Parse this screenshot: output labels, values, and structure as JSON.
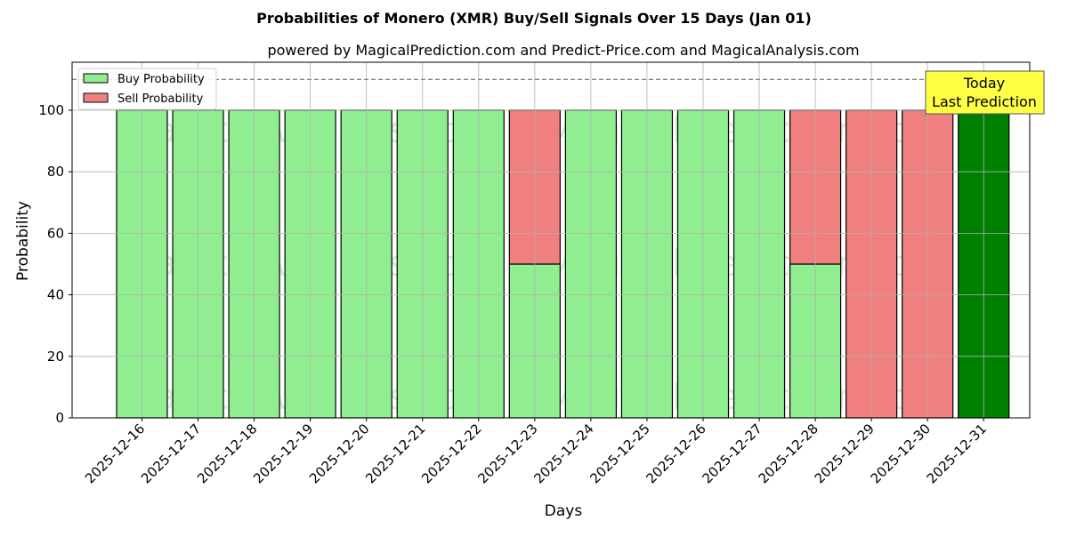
{
  "title": "Probabilities of Monero (XMR) Buy/Sell Signals Over 15 Days (Jan 01)",
  "subtitle": "powered by MagicalPrediction.com and Predict-Price.com and MagicalAnalysis.com",
  "watermarks": [
    "MagicalAnalysis.com",
    "MagicalPrediction.com"
  ],
  "annotation": {
    "line1": "Today",
    "line2": "Last Prediction",
    "bg": "#ffff44"
  },
  "colors": {
    "buy": "#90ee90",
    "sell": "#f08080",
    "today": "#008000"
  },
  "chart_data": {
    "type": "bar",
    "stacked": true,
    "title": "Probabilities of Monero (XMR) Buy/Sell Signals Over 15 Days (Jan 01)",
    "subtitle": "powered by MagicalPrediction.com and Predict-Price.com and MagicalAnalysis.com",
    "xlabel": "Days",
    "ylabel": "Probability",
    "ylim": [
      0,
      115.6
    ],
    "yticks": [
      0,
      20,
      40,
      60,
      80,
      100
    ],
    "grid": true,
    "legend_position": "upper left",
    "reference_line": {
      "y": 110,
      "style": "dashed",
      "color": "#808080"
    },
    "categories": [
      "2025-12-16",
      "2025-12-17",
      "2025-12-18",
      "2025-12-19",
      "2025-12-20",
      "2025-12-21",
      "2025-12-22",
      "2025-12-23",
      "2025-12-24",
      "2025-12-25",
      "2025-12-26",
      "2025-12-27",
      "2025-12-28",
      "2025-12-29",
      "2025-12-30",
      "2025-12-31"
    ],
    "series": [
      {
        "name": "Buy Probability",
        "values": [
          100,
          100,
          100,
          100,
          100,
          100,
          100,
          50,
          100,
          100,
          100,
          100,
          50,
          0,
          0,
          100
        ]
      },
      {
        "name": "Sell Probability",
        "values": [
          0,
          0,
          0,
          0,
          0,
          0,
          0,
          50,
          0,
          0,
          0,
          0,
          50,
          100,
          100,
          0
        ]
      }
    ],
    "highlight_last": {
      "label": "Today / Last Prediction",
      "color": "#008000"
    }
  }
}
